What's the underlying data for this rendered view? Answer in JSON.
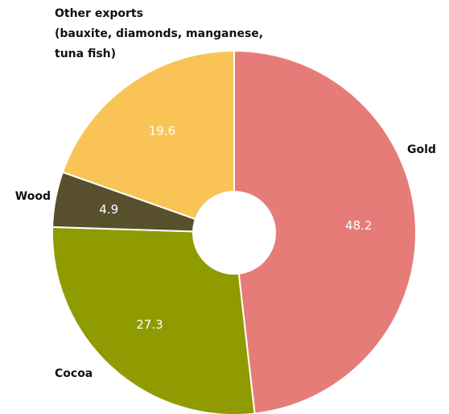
{
  "chart_data": {
    "type": "pie",
    "donut": true,
    "start_angle": "12 o'clock",
    "direction": "clockwise",
    "slices": [
      {
        "label": "Gold",
        "value": 48.2,
        "value_label": "48.2",
        "color": "#e67c78",
        "label_lines": [
          "Gold"
        ]
      },
      {
        "label": "Cocoa",
        "value": 27.3,
        "value_label": "27.3",
        "color": "#8f9b00",
        "label_lines": [
          "Cocoa"
        ]
      },
      {
        "label": "Wood",
        "value": 4.9,
        "value_label": "4.9",
        "color": "#58502c",
        "label_lines": [
          "Wood"
        ]
      },
      {
        "label": "Other exports (bauxite, diamonds, manganese, tuna fish)",
        "value": 19.6,
        "value_label": "19.6",
        "color": "#f9c455",
        "label_lines": [
          "Other exports",
          "(bauxite, diamonds, manganese,",
          "tuna fish)"
        ]
      }
    ]
  }
}
